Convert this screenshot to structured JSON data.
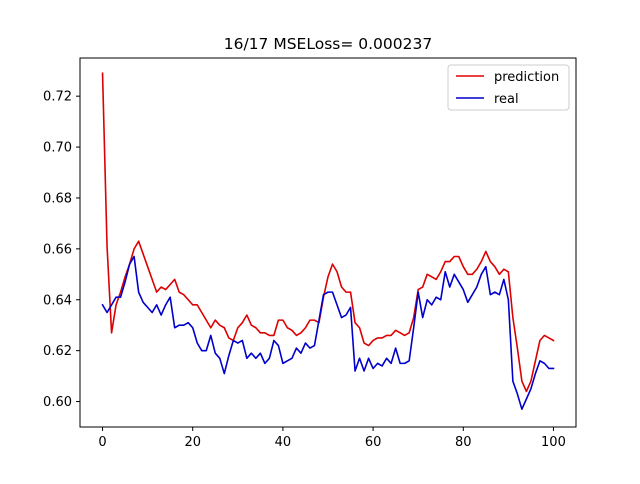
{
  "chart_data": {
    "type": "line",
    "title": "16/17 MSELoss= 0.000237",
    "xlabel": "",
    "ylabel": "",
    "xlim": [
      -5,
      105
    ],
    "ylim": [
      0.59,
      0.735
    ],
    "x_ticks": [
      0,
      20,
      40,
      60,
      80,
      100
    ],
    "y_ticks": [
      0.6,
      0.62,
      0.64,
      0.66,
      0.68,
      0.7,
      0.72
    ],
    "x_tick_labels": [
      "0",
      "20",
      "40",
      "60",
      "80",
      "100"
    ],
    "y_tick_labels": [
      "0.60",
      "0.62",
      "0.64",
      "0.66",
      "0.68",
      "0.70",
      "0.72"
    ],
    "grid": false,
    "legend_position": "top-right",
    "colors": {
      "prediction": "#dd0000",
      "real": "#0000cc",
      "axes": "#000000",
      "legend_border": "#cccccc"
    },
    "series": [
      {
        "name": "prediction",
        "color": "#dd0000",
        "x": [
          0,
          1,
          2,
          3,
          4,
          5,
          6,
          7,
          8,
          9,
          10,
          11,
          12,
          13,
          14,
          15,
          16,
          17,
          18,
          19,
          20,
          21,
          22,
          23,
          24,
          25,
          26,
          27,
          28,
          29,
          30,
          31,
          32,
          33,
          34,
          35,
          36,
          37,
          38,
          39,
          40,
          41,
          42,
          43,
          44,
          45,
          46,
          47,
          48,
          49,
          50,
          51,
          52,
          53,
          54,
          55,
          56,
          57,
          58,
          59,
          60,
          61,
          62,
          63,
          64,
          65,
          66,
          67,
          68,
          69,
          70,
          71,
          72,
          73,
          74,
          75,
          76,
          77,
          78,
          79,
          80,
          81,
          82,
          83,
          84,
          85,
          86,
          87,
          88,
          89,
          90,
          91,
          92,
          93,
          94,
          95,
          96,
          97,
          98,
          99,
          100
        ],
        "values": [
          0.729,
          0.661,
          0.627,
          0.638,
          0.643,
          0.649,
          0.654,
          0.66,
          0.663,
          0.658,
          0.653,
          0.648,
          0.643,
          0.645,
          0.644,
          0.646,
          0.648,
          0.643,
          0.642,
          0.64,
          0.638,
          0.638,
          0.635,
          0.632,
          0.629,
          0.632,
          0.63,
          0.629,
          0.625,
          0.624,
          0.629,
          0.631,
          0.634,
          0.63,
          0.629,
          0.627,
          0.627,
          0.626,
          0.626,
          0.632,
          0.632,
          0.629,
          0.628,
          0.626,
          0.627,
          0.629,
          0.632,
          0.632,
          0.631,
          0.641,
          0.649,
          0.654,
          0.651,
          0.645,
          0.643,
          0.643,
          0.631,
          0.629,
          0.623,
          0.622,
          0.624,
          0.625,
          0.625,
          0.626,
          0.626,
          0.628,
          0.627,
          0.626,
          0.627,
          0.633,
          0.644,
          0.645,
          0.65,
          0.649,
          0.648,
          0.651,
          0.655,
          0.655,
          0.657,
          0.657,
          0.653,
          0.65,
          0.65,
          0.652,
          0.655,
          0.659,
          0.655,
          0.653,
          0.65,
          0.652,
          0.651,
          0.633,
          0.621,
          0.608,
          0.604,
          0.608,
          0.616,
          0.624,
          0.626,
          0.625,
          0.624
        ]
      },
      {
        "name": "real",
        "color": "#0000cc",
        "x": [
          0,
          1,
          2,
          3,
          4,
          5,
          6,
          7,
          8,
          9,
          10,
          11,
          12,
          13,
          14,
          15,
          16,
          17,
          18,
          19,
          20,
          21,
          22,
          23,
          24,
          25,
          26,
          27,
          28,
          29,
          30,
          31,
          32,
          33,
          34,
          35,
          36,
          37,
          38,
          39,
          40,
          41,
          42,
          43,
          44,
          45,
          46,
          47,
          48,
          49,
          50,
          51,
          52,
          53,
          54,
          55,
          56,
          57,
          58,
          59,
          60,
          61,
          62,
          63,
          64,
          65,
          66,
          67,
          68,
          69,
          70,
          71,
          72,
          73,
          74,
          75,
          76,
          77,
          78,
          79,
          80,
          81,
          82,
          83,
          84,
          85,
          86,
          87,
          88,
          89,
          90,
          91,
          92,
          93,
          94,
          95,
          96,
          97,
          98,
          99,
          100
        ],
        "values": [
          0.638,
          0.635,
          0.638,
          0.641,
          0.641,
          0.647,
          0.654,
          0.657,
          0.643,
          0.639,
          0.637,
          0.635,
          0.638,
          0.634,
          0.638,
          0.641,
          0.629,
          0.63,
          0.63,
          0.631,
          0.629,
          0.623,
          0.62,
          0.62,
          0.626,
          0.619,
          0.617,
          0.611,
          0.618,
          0.624,
          0.623,
          0.624,
          0.617,
          0.619,
          0.617,
          0.619,
          0.615,
          0.617,
          0.624,
          0.622,
          0.615,
          0.616,
          0.617,
          0.621,
          0.619,
          0.623,
          0.621,
          0.622,
          0.632,
          0.642,
          0.643,
          0.643,
          0.638,
          0.633,
          0.634,
          0.637,
          0.612,
          0.617,
          0.612,
          0.617,
          0.613,
          0.615,
          0.614,
          0.617,
          0.615,
          0.621,
          0.615,
          0.615,
          0.616,
          0.629,
          0.643,
          0.633,
          0.64,
          0.638,
          0.641,
          0.64,
          0.651,
          0.645,
          0.65,
          0.647,
          0.644,
          0.639,
          0.642,
          0.645,
          0.65,
          0.653,
          0.642,
          0.643,
          0.642,
          0.648,
          0.64,
          0.608,
          0.603,
          0.597,
          0.601,
          0.605,
          0.611,
          0.616,
          0.615,
          0.613,
          0.613
        ]
      }
    ]
  }
}
